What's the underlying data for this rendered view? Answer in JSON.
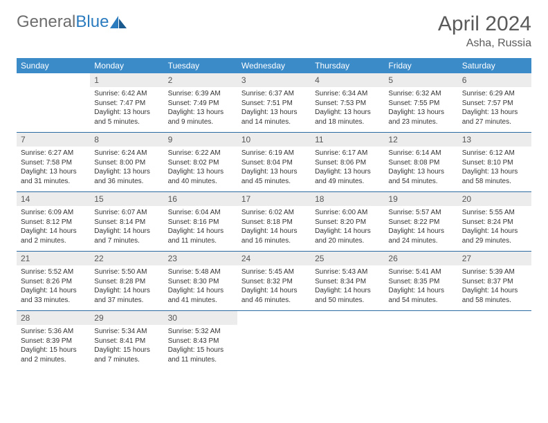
{
  "logo": {
    "general": "General",
    "blue": "Blue"
  },
  "title": "April 2024",
  "subtitle": "Asha, Russia",
  "colors": {
    "header_bg": "#3b8bc9",
    "header_text": "#ffffff",
    "daynum_bg": "#ececec",
    "row_border": "#2b6aa0",
    "logo_general": "#6d6d6d",
    "logo_blue": "#2b7bbf",
    "text": "#333333",
    "title_color": "#5a5a5a"
  },
  "typography": {
    "title_fontsize": 30,
    "subtitle_fontsize": 16,
    "dayhead_fontsize": 12,
    "daynum_fontsize": 12,
    "body_fontsize": 10
  },
  "day_headers": [
    "Sunday",
    "Monday",
    "Tuesday",
    "Wednesday",
    "Thursday",
    "Friday",
    "Saturday"
  ],
  "weeks": [
    [
      {
        "num": "",
        "lines": []
      },
      {
        "num": "1",
        "lines": [
          "Sunrise: 6:42 AM",
          "Sunset: 7:47 PM",
          "Daylight: 13 hours",
          "and 5 minutes."
        ]
      },
      {
        "num": "2",
        "lines": [
          "Sunrise: 6:39 AM",
          "Sunset: 7:49 PM",
          "Daylight: 13 hours",
          "and 9 minutes."
        ]
      },
      {
        "num": "3",
        "lines": [
          "Sunrise: 6:37 AM",
          "Sunset: 7:51 PM",
          "Daylight: 13 hours",
          "and 14 minutes."
        ]
      },
      {
        "num": "4",
        "lines": [
          "Sunrise: 6:34 AM",
          "Sunset: 7:53 PM",
          "Daylight: 13 hours",
          "and 18 minutes."
        ]
      },
      {
        "num": "5",
        "lines": [
          "Sunrise: 6:32 AM",
          "Sunset: 7:55 PM",
          "Daylight: 13 hours",
          "and 23 minutes."
        ]
      },
      {
        "num": "6",
        "lines": [
          "Sunrise: 6:29 AM",
          "Sunset: 7:57 PM",
          "Daylight: 13 hours",
          "and 27 minutes."
        ]
      }
    ],
    [
      {
        "num": "7",
        "lines": [
          "Sunrise: 6:27 AM",
          "Sunset: 7:58 PM",
          "Daylight: 13 hours",
          "and 31 minutes."
        ]
      },
      {
        "num": "8",
        "lines": [
          "Sunrise: 6:24 AM",
          "Sunset: 8:00 PM",
          "Daylight: 13 hours",
          "and 36 minutes."
        ]
      },
      {
        "num": "9",
        "lines": [
          "Sunrise: 6:22 AM",
          "Sunset: 8:02 PM",
          "Daylight: 13 hours",
          "and 40 minutes."
        ]
      },
      {
        "num": "10",
        "lines": [
          "Sunrise: 6:19 AM",
          "Sunset: 8:04 PM",
          "Daylight: 13 hours",
          "and 45 minutes."
        ]
      },
      {
        "num": "11",
        "lines": [
          "Sunrise: 6:17 AM",
          "Sunset: 8:06 PM",
          "Daylight: 13 hours",
          "and 49 minutes."
        ]
      },
      {
        "num": "12",
        "lines": [
          "Sunrise: 6:14 AM",
          "Sunset: 8:08 PM",
          "Daylight: 13 hours",
          "and 54 minutes."
        ]
      },
      {
        "num": "13",
        "lines": [
          "Sunrise: 6:12 AM",
          "Sunset: 8:10 PM",
          "Daylight: 13 hours",
          "and 58 minutes."
        ]
      }
    ],
    [
      {
        "num": "14",
        "lines": [
          "Sunrise: 6:09 AM",
          "Sunset: 8:12 PM",
          "Daylight: 14 hours",
          "and 2 minutes."
        ]
      },
      {
        "num": "15",
        "lines": [
          "Sunrise: 6:07 AM",
          "Sunset: 8:14 PM",
          "Daylight: 14 hours",
          "and 7 minutes."
        ]
      },
      {
        "num": "16",
        "lines": [
          "Sunrise: 6:04 AM",
          "Sunset: 8:16 PM",
          "Daylight: 14 hours",
          "and 11 minutes."
        ]
      },
      {
        "num": "17",
        "lines": [
          "Sunrise: 6:02 AM",
          "Sunset: 8:18 PM",
          "Daylight: 14 hours",
          "and 16 minutes."
        ]
      },
      {
        "num": "18",
        "lines": [
          "Sunrise: 6:00 AM",
          "Sunset: 8:20 PM",
          "Daylight: 14 hours",
          "and 20 minutes."
        ]
      },
      {
        "num": "19",
        "lines": [
          "Sunrise: 5:57 AM",
          "Sunset: 8:22 PM",
          "Daylight: 14 hours",
          "and 24 minutes."
        ]
      },
      {
        "num": "20",
        "lines": [
          "Sunrise: 5:55 AM",
          "Sunset: 8:24 PM",
          "Daylight: 14 hours",
          "and 29 minutes."
        ]
      }
    ],
    [
      {
        "num": "21",
        "lines": [
          "Sunrise: 5:52 AM",
          "Sunset: 8:26 PM",
          "Daylight: 14 hours",
          "and 33 minutes."
        ]
      },
      {
        "num": "22",
        "lines": [
          "Sunrise: 5:50 AM",
          "Sunset: 8:28 PM",
          "Daylight: 14 hours",
          "and 37 minutes."
        ]
      },
      {
        "num": "23",
        "lines": [
          "Sunrise: 5:48 AM",
          "Sunset: 8:30 PM",
          "Daylight: 14 hours",
          "and 41 minutes."
        ]
      },
      {
        "num": "24",
        "lines": [
          "Sunrise: 5:45 AM",
          "Sunset: 8:32 PM",
          "Daylight: 14 hours",
          "and 46 minutes."
        ]
      },
      {
        "num": "25",
        "lines": [
          "Sunrise: 5:43 AM",
          "Sunset: 8:34 PM",
          "Daylight: 14 hours",
          "and 50 minutes."
        ]
      },
      {
        "num": "26",
        "lines": [
          "Sunrise: 5:41 AM",
          "Sunset: 8:35 PM",
          "Daylight: 14 hours",
          "and 54 minutes."
        ]
      },
      {
        "num": "27",
        "lines": [
          "Sunrise: 5:39 AM",
          "Sunset: 8:37 PM",
          "Daylight: 14 hours",
          "and 58 minutes."
        ]
      }
    ],
    [
      {
        "num": "28",
        "lines": [
          "Sunrise: 5:36 AM",
          "Sunset: 8:39 PM",
          "Daylight: 15 hours",
          "and 2 minutes."
        ]
      },
      {
        "num": "29",
        "lines": [
          "Sunrise: 5:34 AM",
          "Sunset: 8:41 PM",
          "Daylight: 15 hours",
          "and 7 minutes."
        ]
      },
      {
        "num": "30",
        "lines": [
          "Sunrise: 5:32 AM",
          "Sunset: 8:43 PM",
          "Daylight: 15 hours",
          "and 11 minutes."
        ]
      },
      {
        "num": "",
        "lines": []
      },
      {
        "num": "",
        "lines": []
      },
      {
        "num": "",
        "lines": []
      },
      {
        "num": "",
        "lines": []
      }
    ]
  ]
}
